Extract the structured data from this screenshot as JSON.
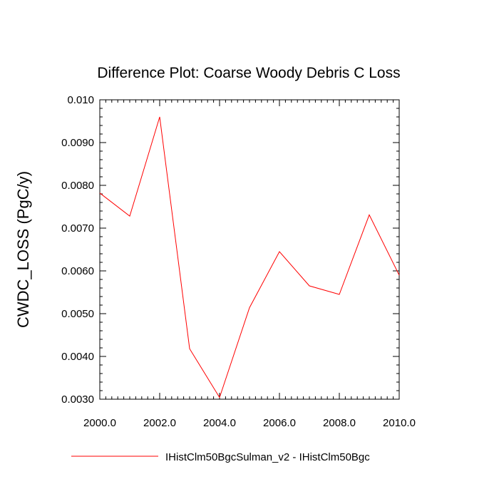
{
  "chart_data": {
    "type": "line",
    "title": "Difference Plot: Coarse Woody Debris C Loss",
    "xlabel": "",
    "ylabel": "CWDC_LOSS  (PgC/y)",
    "xlim": [
      2000,
      2010
    ],
    "ylim": [
      0.003,
      0.01
    ],
    "xticks": [
      2000,
      2002,
      2004,
      2006,
      2008,
      2010
    ],
    "xtick_labels": [
      "2000.0",
      "2002.0",
      "2004.0",
      "2006.0",
      "2008.0",
      "2010.0"
    ],
    "yticks": [
      0.003,
      0.004,
      0.005,
      0.006,
      0.007,
      0.008,
      0.009,
      0.01
    ],
    "ytick_labels": [
      "0.0030",
      "0.0040",
      "0.0050",
      "0.0060",
      "0.0070",
      "0.0080",
      "0.0090",
      "0.010"
    ],
    "grid": false,
    "legend_position": "bottom",
    "x": [
      2000,
      2001,
      2002,
      2003,
      2004,
      2005,
      2006,
      2007,
      2008,
      2009,
      2010
    ],
    "series": [
      {
        "name": "IHistClm50BgcSulman_v2 - IHistClm50Bgc",
        "color": "#ff0000",
        "values": [
          0.00782,
          0.00728,
          0.0096,
          0.00418,
          0.00304,
          0.00514,
          0.00645,
          0.00565,
          0.00545,
          0.00731,
          0.0059
        ]
      }
    ]
  }
}
